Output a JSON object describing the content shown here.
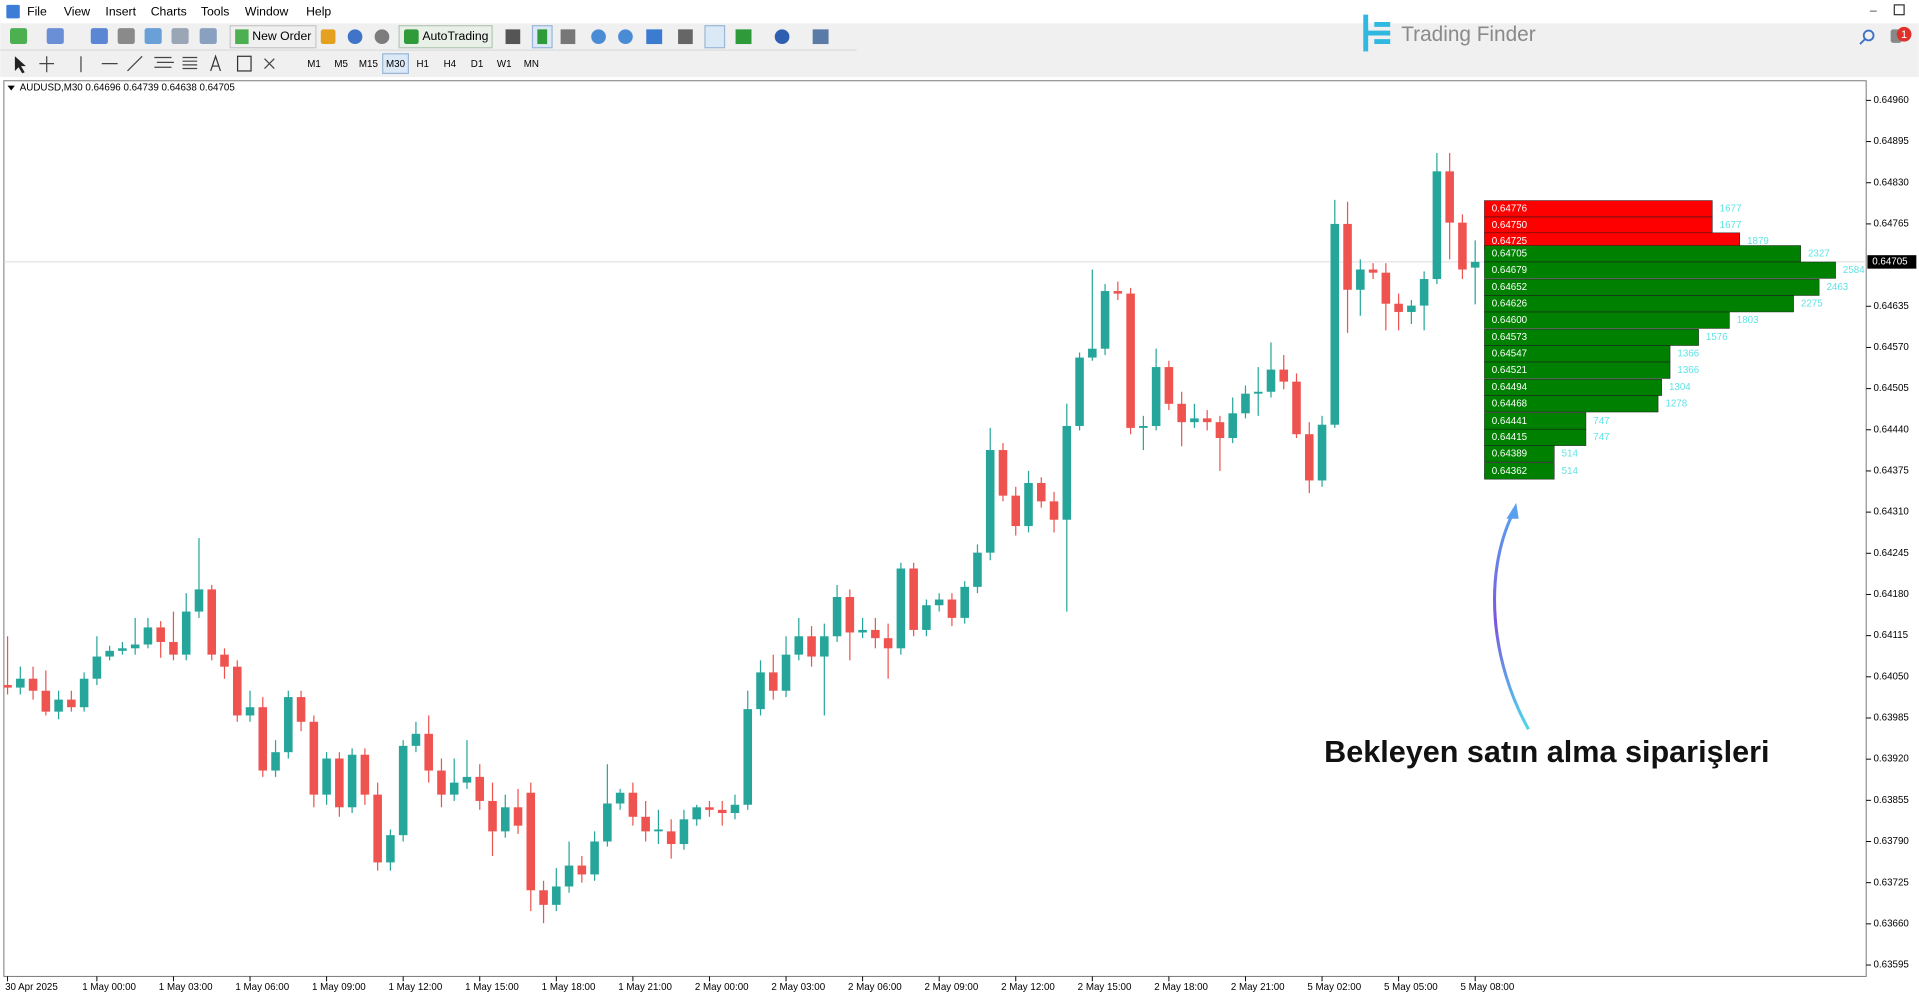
{
  "menu": [
    "File",
    "View",
    "Insert",
    "Charts",
    "Tools",
    "Window",
    "Help"
  ],
  "toolbar": {
    "new_order": "New Order",
    "auto_trading": "AutoTrading",
    "timeframes": [
      "M1",
      "M5",
      "M15",
      "M30",
      "H1",
      "H4",
      "D1",
      "W1",
      "MN"
    ]
  },
  "logo": "Trading Finder",
  "notifications": 1,
  "chart_data": {
    "type": "candlestick",
    "title": "AUDUSD,M30  0.64696 0.64739 0.64638 0.64705",
    "categories": [
      "30 Apr 2025",
      null,
      null,
      null,
      null,
      null,
      null,
      "1 May 00:00",
      null,
      null,
      null,
      null,
      null,
      "1 May 03:00",
      null,
      null,
      null,
      null,
      null,
      "1 May 06:00",
      null,
      null,
      null,
      null,
      null,
      "1 May 09:00",
      null,
      null,
      null,
      null,
      null,
      "1 May 12:00",
      null,
      null,
      null,
      null,
      null,
      "1 May 15:00",
      null,
      null,
      null,
      null,
      null,
      "1 May 18:00",
      null,
      null,
      null,
      null,
      null,
      "1 May 21:00",
      null,
      null,
      null,
      null,
      null,
      "2 May 00:00",
      null,
      null,
      null,
      null,
      null,
      "2 May 03:00",
      null,
      null,
      null,
      null,
      null,
      "2 May 06:00",
      null,
      null,
      null,
      null,
      null,
      "2 May 09:00",
      null,
      null,
      null,
      null,
      null,
      "2 May 12:00",
      null,
      null,
      null,
      null,
      null,
      "2 May 15:00",
      null,
      null,
      null,
      null,
      null,
      "2 May 18:00",
      null,
      null,
      null,
      null,
      null,
      "2 May 21:00",
      null,
      null,
      null,
      null,
      null,
      "5 May 02:00",
      null,
      null,
      null,
      null,
      null,
      "5 May 05:00",
      null,
      null,
      null,
      null,
      null,
      "5 May 08:00"
    ],
    "open": [
      0.64037,
      0.64033,
      0.64047,
      0.64028,
      0.63995,
      0.64014,
      0.64002,
      0.64047,
      0.64082,
      0.64091,
      0.64095,
      0.64101,
      0.64128,
      0.64105,
      0.64085,
      0.64153,
      0.64188,
      0.64085,
      0.64066,
      0.63989,
      0.64002,
      0.63902,
      0.63931,
      0.64018,
      0.63979,
      0.63864,
      0.63921,
      0.63844,
      0.63927,
      0.63864,
      0.63757,
      0.638,
      0.63941,
      0.6396,
      0.63902,
      0.63864,
      0.63883,
      0.63892,
      0.63854,
      0.63806,
      0.63844,
      0.63867,
      0.63713,
      0.6369,
      0.63719,
      0.63752,
      0.63738,
      0.6379,
      0.6385,
      0.63867,
      0.63829,
      0.63806,
      0.63806,
      0.63786,
      0.63825,
      0.63844,
      0.6384,
      0.63835,
      0.63848,
      0.63999,
      0.64057,
      0.64028,
      0.64085,
      0.64114,
      0.64082,
      0.64114,
      0.64176,
      0.6412,
      0.64124,
      0.64111,
      0.64095,
      0.64221,
      0.64124,
      0.64163,
      0.64172,
      0.64143,
      0.64192,
      0.64246,
      0.64408,
      0.64336,
      0.64288,
      0.64356,
      0.64327,
      0.64298,
      0.64446,
      0.64554,
      0.64568,
      0.64659,
      0.64655,
      0.64443,
      0.64446,
      0.64539,
      0.64481,
      0.64452,
      0.64458,
      0.64452,
      0.64427,
      0.64466,
      0.64497,
      0.645,
      0.64535,
      0.64516,
      0.64433,
      0.6436,
      0.64448,
      0.64765,
      0.64661,
      0.64693,
      0.64688,
      0.64639,
      0.64626,
      0.64636,
      0.64678,
      0.64848,
      0.64767,
      0.64696
    ],
    "high": [
      0.64114,
      0.64066,
      0.64066,
      0.6406,
      0.64028,
      0.64028,
      0.64057,
      0.64114,
      0.64099,
      0.64105,
      0.64143,
      0.64143,
      0.64138,
      0.64153,
      0.64182,
      0.64269,
      0.64195,
      0.64095,
      0.64076,
      0.64028,
      0.64018,
      0.6395,
      0.64028,
      0.64028,
      0.63989,
      0.63931,
      0.63931,
      0.63937,
      0.63937,
      0.63883,
      0.63809,
      0.6395,
      0.63979,
      0.63989,
      0.63921,
      0.63921,
      0.6395,
      0.63912,
      0.63883,
      0.63864,
      0.63873,
      0.63883,
      0.63728,
      0.63748,
      0.6379,
      0.63767,
      0.63806,
      0.63912,
      0.63873,
      0.63883,
      0.63854,
      0.6384,
      0.63825,
      0.6384,
      0.63848,
      0.63854,
      0.63854,
      0.63864,
      0.64028,
      0.64076,
      0.64085,
      0.64114,
      0.64143,
      0.6413,
      0.64134,
      0.64195,
      0.64188,
      0.64143,
      0.64143,
      0.64134,
      0.6423,
      0.6423,
      0.64172,
      0.64182,
      0.64182,
      0.64201,
      0.64259,
      0.64443,
      0.64419,
      0.6435,
      0.64375,
      0.64365,
      0.64342,
      0.64481,
      0.64562,
      0.64693,
      0.6467,
      0.64674,
      0.64664,
      0.64462,
      0.64568,
      0.64549,
      0.645,
      0.64481,
      0.64471,
      0.64462,
      0.64491,
      0.6451,
      0.64539,
      0.64578,
      0.64558,
      0.64529,
      0.64452,
      0.64462,
      0.64803,
      0.648,
      0.64709,
      0.64703,
      0.64703,
      0.64655,
      0.64645,
      0.6469,
      0.64877,
      0.64877,
      0.6478,
      0.64739
    ],
    "low": [
      0.64022,
      0.64022,
      0.64014,
      0.63989,
      0.63983,
      0.63995,
      0.63995,
      0.64037,
      0.64076,
      0.64085,
      0.64085,
      0.64095,
      0.6408,
      0.64076,
      0.64076,
      0.64143,
      0.64076,
      0.64047,
      0.63979,
      0.63979,
      0.63892,
      0.63892,
      0.63921,
      0.63964,
      0.63844,
      0.63848,
      0.63829,
      0.63835,
      0.63848,
      0.63744,
      0.63744,
      0.6379,
      0.63931,
      0.63883,
      0.63844,
      0.63854,
      0.63873,
      0.6384,
      0.63767,
      0.63796,
      0.63802,
      0.6368,
      0.63661,
      0.6368,
      0.63709,
      0.63725,
      0.63728,
      0.63782,
      0.6384,
      0.63815,
      0.6379,
      0.63786,
      0.63763,
      0.63777,
      0.63815,
      0.63829,
      0.63815,
      0.63825,
      0.6384,
      0.63989,
      0.64014,
      0.64018,
      0.64076,
      0.64066,
      0.63989,
      0.64105,
      0.64076,
      0.64111,
      0.64095,
      0.64047,
      0.64085,
      0.64114,
      0.64114,
      0.64153,
      0.6413,
      0.64134,
      0.64182,
      0.64234,
      0.64327,
      0.64273,
      0.64278,
      0.64317,
      0.64278,
      0.64153,
      0.64439,
      0.64549,
      0.64558,
      0.64645,
      0.64433,
      0.64408,
      0.64439,
      0.64471,
      0.64414,
      0.64443,
      0.64439,
      0.64375,
      0.64419,
      0.64458,
      0.64462,
      0.64491,
      0.64504,
      0.64427,
      0.6434,
      0.6435,
      0.64443,
      0.64593,
      0.6462,
      0.64678,
      0.64597,
      0.64597,
      0.64607,
      0.64597,
      0.6467,
      0.64709,
      0.64678,
      0.64638
    ],
    "close": [
      0.64033,
      0.64047,
      0.64028,
      0.63995,
      0.64014,
      0.64002,
      0.64047,
      0.64082,
      0.64091,
      0.64095,
      0.64101,
      0.64128,
      0.64105,
      0.64085,
      0.64153,
      0.64188,
      0.64085,
      0.64066,
      0.63989,
      0.64002,
      0.63902,
      0.63931,
      0.64018,
      0.63979,
      0.63864,
      0.63921,
      0.63844,
      0.63927,
      0.63864,
      0.63757,
      0.638,
      0.63941,
      0.6396,
      0.63902,
      0.63864,
      0.63883,
      0.63892,
      0.63854,
      0.63806,
      0.63844,
      0.63815,
      0.63713,
      0.6369,
      0.63719,
      0.63752,
      0.63738,
      0.6379,
      0.6385,
      0.63867,
      0.63829,
      0.63806,
      0.63809,
      0.63786,
      0.63825,
      0.63844,
      0.6384,
      0.63835,
      0.63848,
      0.63999,
      0.64057,
      0.64028,
      0.64085,
      0.64114,
      0.64082,
      0.64114,
      0.64176,
      0.6412,
      0.64124,
      0.64111,
      0.64095,
      0.64221,
      0.64124,
      0.64163,
      0.64172,
      0.64143,
      0.64192,
      0.64246,
      0.64408,
      0.64336,
      0.64288,
      0.64356,
      0.64327,
      0.64298,
      0.64446,
      0.64554,
      0.64568,
      0.64659,
      0.64655,
      0.64443,
      0.64446,
      0.64539,
      0.64481,
      0.64452,
      0.64458,
      0.64452,
      0.64427,
      0.64466,
      0.64497,
      0.645,
      0.64535,
      0.64516,
      0.64433,
      0.6436,
      0.64448,
      0.64765,
      0.64661,
      0.64693,
      0.64688,
      0.64639,
      0.64626,
      0.64636,
      0.64678,
      0.64848,
      0.64767,
      0.64693,
      0.64705
    ],
    "up_color": "#26a69a",
    "down_color": "#ef5350",
    "ylim": [
      0.63577,
      0.64991
    ],
    "yticks": [
      {
        "value": 0.6496,
        "label": "0.64960"
      },
      0.64895,
      {
        "value": 0.6483,
        "label": "0.64830"
      },
      0.64765,
      0.64635,
      {
        "value": 0.6457,
        "label": "0.64570"
      },
      0.64505,
      {
        "value": 0.6444,
        "label": "0.64440"
      },
      0.64375,
      {
        "value": 0.6431,
        "label": "0.64310"
      },
      0.64245,
      {
        "value": 0.6418,
        "label": "0.64180"
      },
      0.64115,
      {
        "value": 0.6405,
        "label": "0.64050"
      },
      0.63985,
      {
        "value": 0.6392,
        "label": "0.63920"
      },
      0.63855,
      {
        "value": 0.6379,
        "label": "0.63790"
      },
      0.63725,
      {
        "value": 0.6366,
        "label": "0.63660"
      },
      0.63595
    ],
    "current_price": 0.64705,
    "order_book": {
      "ask_color": "#ff0000",
      "bid_color": "#008000",
      "volume_color": "#5fe3e6",
      "asks": [
        {
          "price": 0.64776,
          "volume": 1677
        },
        {
          "price": 0.6475,
          "price_label": "0.64750",
          "volume": 1677
        },
        {
          "price": 0.64725,
          "volume": 1879
        }
      ],
      "bids": [
        {
          "price": 0.64705,
          "volume": 2327
        },
        {
          "price": 0.64679,
          "volume": 2584
        },
        {
          "price": 0.64652,
          "volume": 2463
        },
        {
          "price": 0.64626,
          "volume": 2275
        },
        {
          "price": 0.646,
          "price_label": "0.64600",
          "volume": 1803
        },
        {
          "price": 0.64573,
          "volume": 1576
        },
        {
          "price": 0.64547,
          "volume": 1366
        },
        {
          "price": 0.64521,
          "volume": 1366
        },
        {
          "price": 0.64494,
          "volume": 1304
        },
        {
          "price": 0.64468,
          "volume": 1278
        },
        {
          "price": 0.64441,
          "volume": 747
        },
        {
          "price": 0.64415,
          "volume": 747
        },
        {
          "price": 0.64389,
          "volume": 514
        },
        {
          "price": 0.64362,
          "volume": 514
        }
      ]
    },
    "annotation": "Bekleyen satın alma siparişleri"
  }
}
